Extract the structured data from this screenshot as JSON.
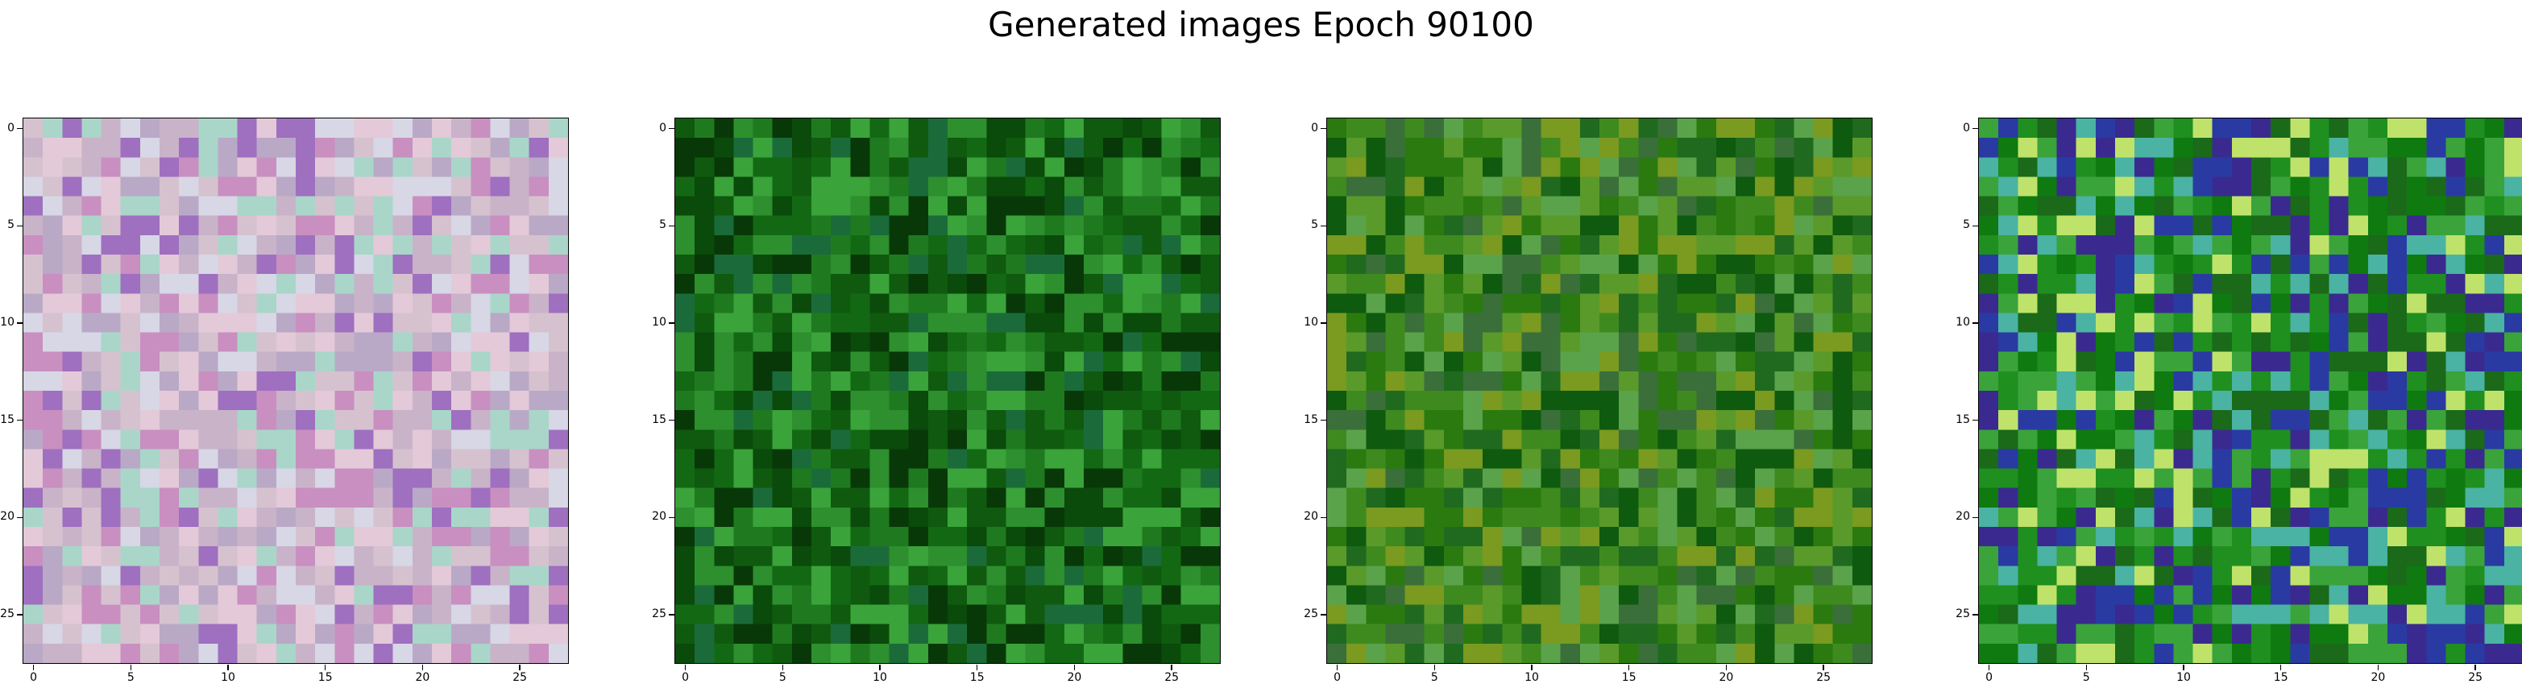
{
  "figure": {
    "title": "Generated images Epoch 90100"
  },
  "chart_data": {
    "type": "heatmap",
    "title": "Generated images Epoch 90100",
    "grid_size": 28,
    "xticks": [
      "0",
      "5",
      "10",
      "15",
      "20",
      "25"
    ],
    "yticks": [
      "0",
      "5",
      "10",
      "15",
      "20",
      "25"
    ],
    "xlim": [
      -0.5,
      27.5
    ],
    "ylim": [
      27.5,
      -0.5
    ],
    "panels": [
      {
        "palette": "pastel-mixed",
        "colors": [
          "#c9b3c9",
          "#d6c2cf",
          "#b9a9c6",
          "#e4c9d8",
          "#9f6fc0",
          "#c98fc0",
          "#d7d7e6",
          "#a9d6c9"
        ],
        "seed": 7
      },
      {
        "palette": "green-dominant",
        "colors": [
          "#1f7a1f",
          "#0f5a0f",
          "#2d8f2d",
          "#136913",
          "#0a4a0a",
          "#3aa33a",
          "#083808",
          "#1b6b3a"
        ],
        "seed": 19
      },
      {
        "palette": "green-mixed",
        "colors": [
          "#3f8a1f",
          "#2a7a10",
          "#5a9a2a",
          "#1f6a1f",
          "#0e5a0e",
          "#5aa34a",
          "#3a6f3a",
          "#7a9a20"
        ],
        "seed": 31
      },
      {
        "palette": "green-blue",
        "colors": [
          "#1f8f1f",
          "#0f7a0f",
          "#3aa33a",
          "#1a6a1a",
          "#2a3aa3",
          "#3a2a8f",
          "#4ab3a3",
          "#bfe36a"
        ],
        "seed": 47
      }
    ]
  }
}
